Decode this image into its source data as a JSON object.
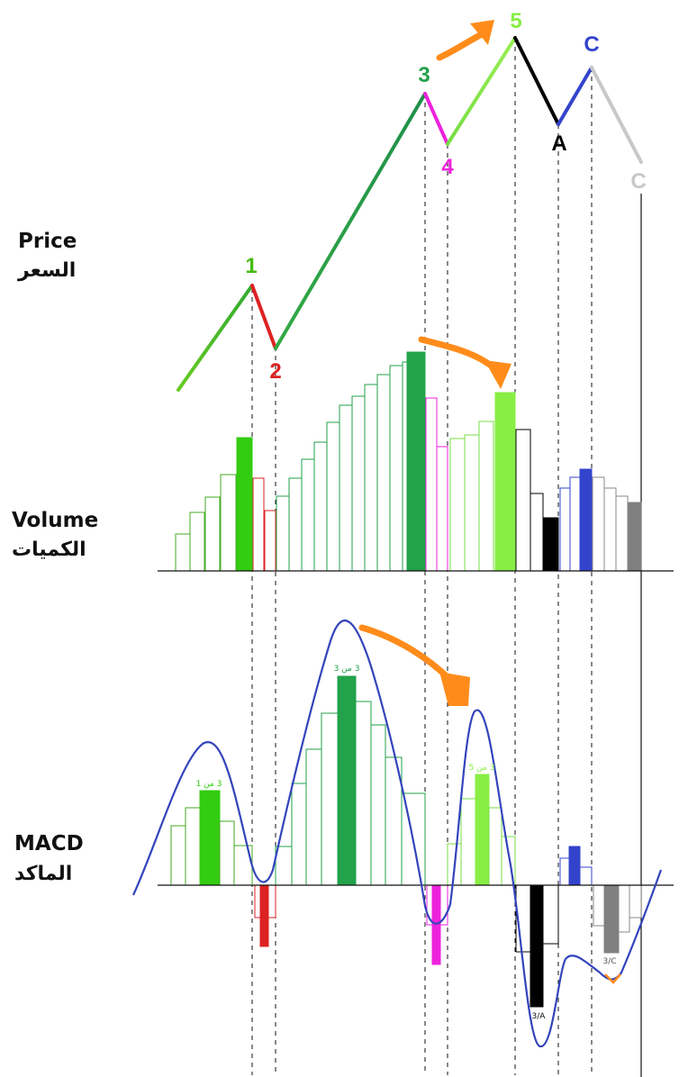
{
  "sections": {
    "price": {
      "en": "Price",
      "ar": "السعر"
    },
    "volume": {
      "en": "Volume",
      "ar": "الكميات"
    },
    "macd": {
      "en": "MACD",
      "ar": "الماكد"
    }
  },
  "wave_labels": {
    "w1": "1",
    "w2": "2",
    "w3": "3",
    "w4": "4",
    "w5": "5",
    "wA": "A",
    "wC1": "C",
    "wC2": "C"
  },
  "macd_labels": {
    "m1": "3 من 1",
    "m3": "3 من 3",
    "m5": "3 من 5",
    "mA": "3/A",
    "mC": "3/C"
  },
  "colors": {
    "wave1": "#44bb11",
    "wave2": "#dd2222",
    "wave3": "#22a24a",
    "wave4": "#ee22dd",
    "wave5": "#88ee44",
    "waveA": "#000000",
    "waveB": "#3344cc",
    "waveC": "#c8c8c8",
    "waveC_dark": "#808080",
    "macd_line": "#3344bb",
    "arrow": "#ff8c1a"
  }
}
